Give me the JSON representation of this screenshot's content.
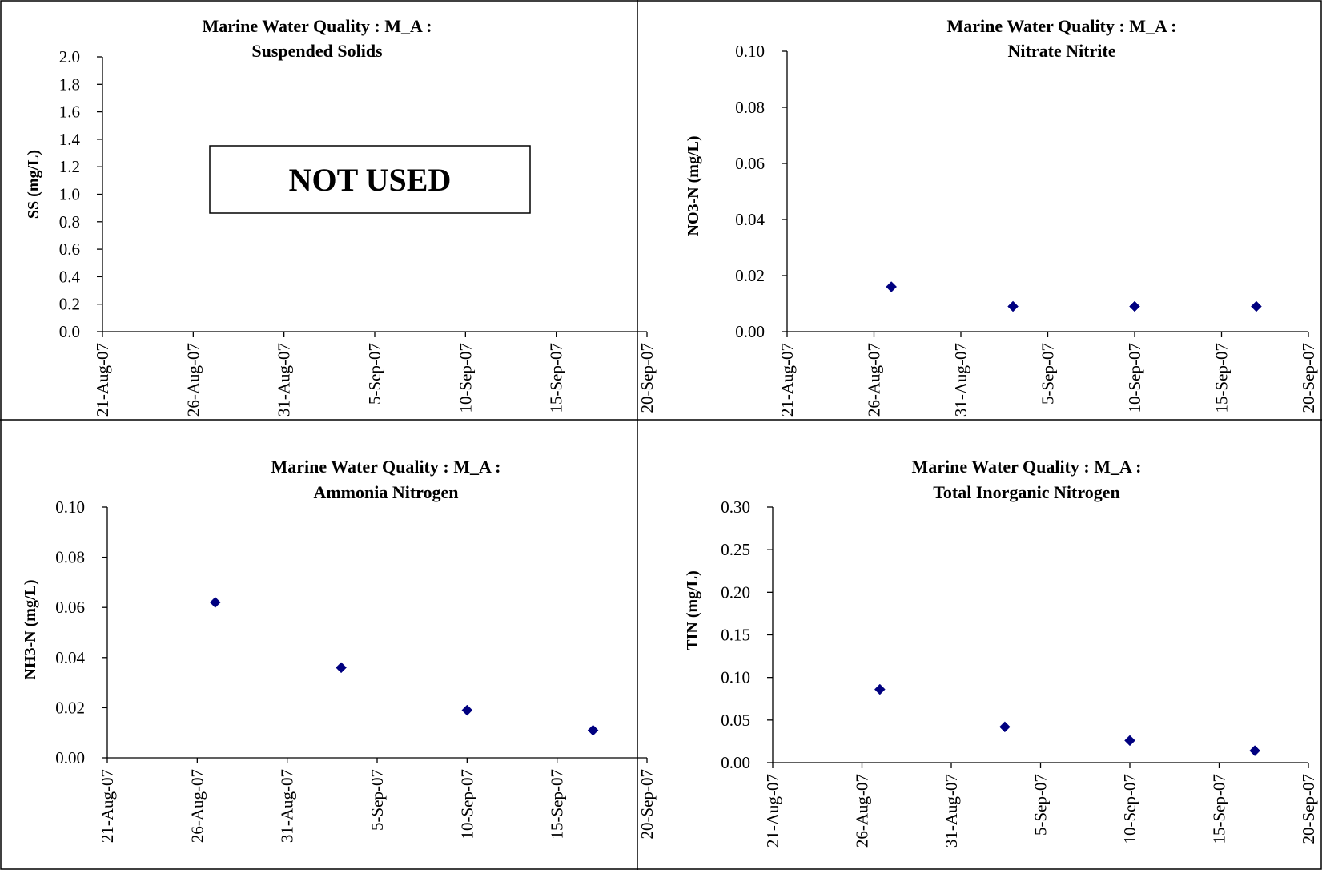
{
  "charts": [
    {
      "type": "scatter",
      "title_line1": "Marine Water Quality : M_A :",
      "title_line2": "Suspended Solids",
      "ylabel": "SS (mg/L)",
      "x_ticks": [
        "21-Aug-07",
        "26-Aug-07",
        "31-Aug-07",
        "5-Sep-07",
        "10-Sep-07",
        "15-Sep-07",
        "20-Sep-07"
      ],
      "y_ticks": [
        "0.0",
        "0.2",
        "0.4",
        "0.6",
        "0.8",
        "1.0",
        "1.2",
        "1.4",
        "1.6",
        "1.8",
        "2.0"
      ],
      "xlim": [
        "2007-08-21",
        "2007-09-20"
      ],
      "ylim": [
        0,
        2.0
      ],
      "series": [
        {
          "x": [],
          "y": []
        }
      ],
      "overlay_text": "NOT USED",
      "color": "#000080"
    },
    {
      "type": "scatter",
      "title_line1": "Marine Water Quality : M_A :",
      "title_line2": "Nitrate Nitrite",
      "ylabel": "NO3-N (mg/L)",
      "x_ticks": [
        "21-Aug-07",
        "26-Aug-07",
        "31-Aug-07",
        "5-Sep-07",
        "10-Sep-07",
        "15-Sep-07",
        "20-Sep-07"
      ],
      "y_ticks": [
        "0.00",
        "0.02",
        "0.04",
        "0.06",
        "0.08",
        "0.10"
      ],
      "xlim": [
        "2007-08-21",
        "2007-09-20"
      ],
      "ylim": [
        0,
        0.1
      ],
      "series": [
        {
          "x": [
            "2007-08-27",
            "2007-09-03",
            "2007-09-10",
            "2007-09-17"
          ],
          "y": [
            0.016,
            0.009,
            0.009,
            0.009
          ]
        }
      ],
      "color": "#000080"
    },
    {
      "type": "scatter",
      "title_line1": "Marine Water Quality : M_A :",
      "title_line2": "Ammonia Nitrogen",
      "ylabel": "NH3-N (mg/L)",
      "x_ticks": [
        "21-Aug-07",
        "26-Aug-07",
        "31-Aug-07",
        "5-Sep-07",
        "10-Sep-07",
        "15-Sep-07",
        "20-Sep-07"
      ],
      "y_ticks": [
        "0.00",
        "0.02",
        "0.04",
        "0.06",
        "0.08",
        "0.10"
      ],
      "xlim": [
        "2007-08-21",
        "2007-09-20"
      ],
      "ylim": [
        0,
        0.1
      ],
      "series": [
        {
          "x": [
            "2007-08-27",
            "2007-09-03",
            "2007-09-10",
            "2007-09-17"
          ],
          "y": [
            0.062,
            0.036,
            0.019,
            0.011
          ]
        }
      ],
      "color": "#000080"
    },
    {
      "type": "scatter",
      "title_line1": "Marine Water Quality : M_A :",
      "title_line2": "Total Inorganic Nitrogen",
      "ylabel": "TIN (mg/L)",
      "x_ticks": [
        "21-Aug-07",
        "26-Aug-07",
        "31-Aug-07",
        "5-Sep-07",
        "10-Sep-07",
        "15-Sep-07",
        "20-Sep-07"
      ],
      "y_ticks": [
        "0.00",
        "0.05",
        "0.10",
        "0.15",
        "0.20",
        "0.25",
        "0.30"
      ],
      "xlim": [
        "2007-08-21",
        "2007-09-20"
      ],
      "ylim": [
        0,
        0.3
      ],
      "series": [
        {
          "x": [
            "2007-08-27",
            "2007-09-03",
            "2007-09-10",
            "2007-09-17"
          ],
          "y": [
            0.086,
            0.042,
            0.026,
            0.014
          ]
        }
      ],
      "color": "#000080"
    }
  ]
}
